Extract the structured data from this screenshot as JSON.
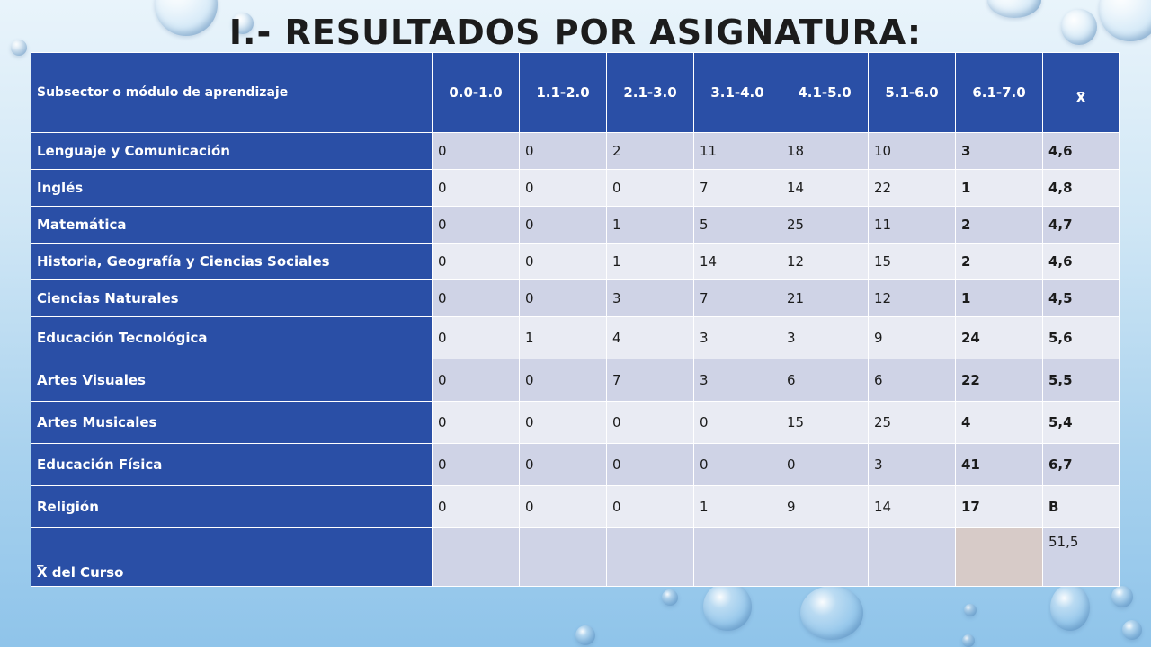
{
  "title": "I.- RESULTADOS POR ASIGNATURA:",
  "table": {
    "subject_header": "Subsector o módulo de aprendizaje",
    "range_headers": [
      "0.0-1.0",
      "1.1-2.0",
      "2.1-3.0",
      "3.1-4.0",
      "4.1-5.0",
      "5.1-6.0",
      "6.1-7.0"
    ],
    "mean_header_bar": "_",
    "mean_header": "X",
    "rows": [
      {
        "subject": "Lenguaje y Comunicación",
        "counts": [
          "0",
          "0",
          "2",
          "11",
          "18",
          "10",
          "3"
        ],
        "mean": "4,6"
      },
      {
        "subject": "Inglés",
        "counts": [
          "0",
          "0",
          "0",
          "7",
          "14",
          "22",
          "1"
        ],
        "mean": "4,8"
      },
      {
        "subject": "Matemática",
        "counts": [
          "0",
          "0",
          "1",
          "5",
          "25",
          "11",
          "2"
        ],
        "mean": "4,7"
      },
      {
        "subject": "Historia, Geografía y Ciencias Sociales",
        "counts": [
          "0",
          "0",
          "1",
          "14",
          "12",
          "15",
          "2"
        ],
        "mean": "4,6"
      },
      {
        "subject": "Ciencias Naturales",
        "counts": [
          "0",
          "0",
          "3",
          "7",
          "21",
          "12",
          "1"
        ],
        "mean": "4,5"
      },
      {
        "subject": "Educación Tecnológica",
        "counts": [
          "0",
          "1",
          "4",
          "3",
          "3",
          "9",
          "24"
        ],
        "mean": "5,6"
      },
      {
        "subject": "Artes Visuales",
        "counts": [
          "0",
          "0",
          "7",
          "3",
          "6",
          "6",
          "22"
        ],
        "mean": "5,5"
      },
      {
        "subject": "Artes Musicales",
        "counts": [
          "0",
          "0",
          "0",
          "0",
          "15",
          "25",
          "4"
        ],
        "mean": "5,4"
      },
      {
        "subject": "Educación Física",
        "counts": [
          "0",
          "0",
          "0",
          "0",
          "0",
          "3",
          "41"
        ],
        "mean": "6,7"
      },
      {
        "subject": "Religión",
        "counts": [
          "0",
          "0",
          "0",
          "1",
          "9",
          "14",
          "17"
        ],
        "mean": "B"
      }
    ],
    "footer_bar": "_",
    "footer_label": "X del Curso",
    "footer_value": "51,5"
  }
}
